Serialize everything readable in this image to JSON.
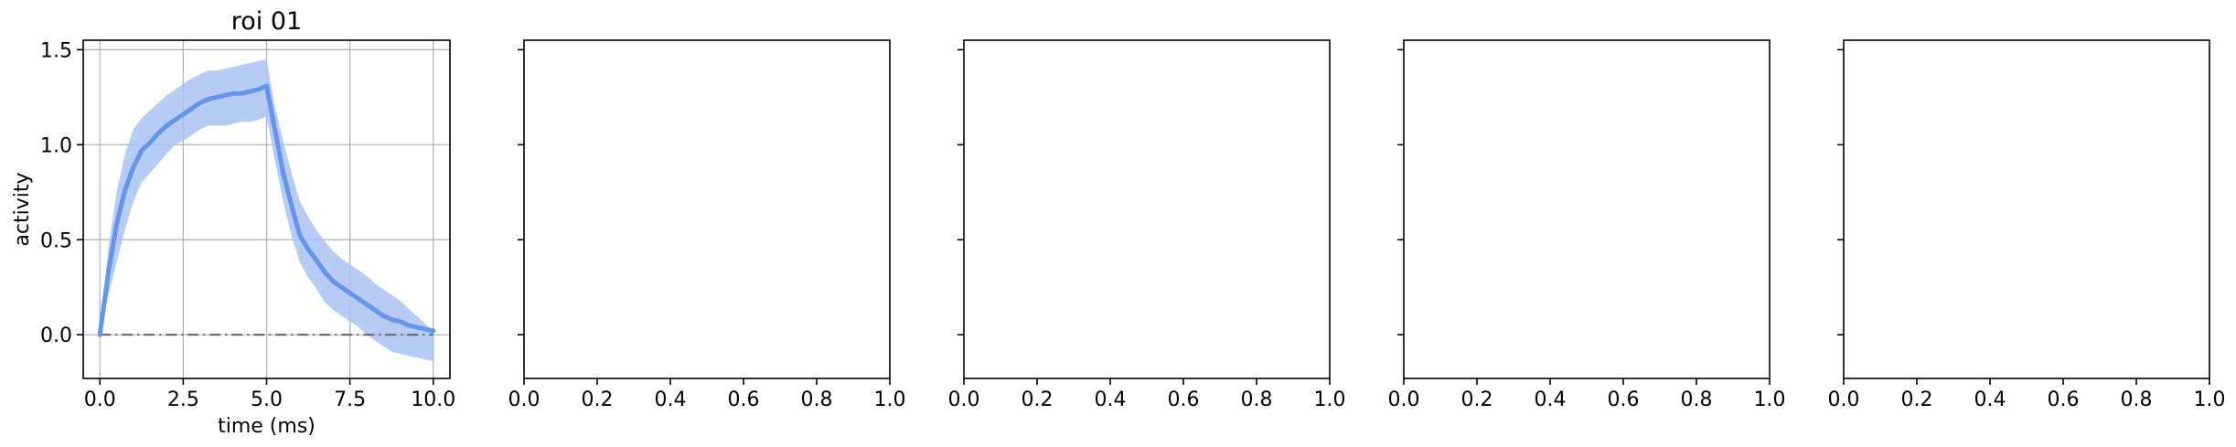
{
  "chart_data": [
    {
      "type": "line",
      "title": "roi 01",
      "xlabel": "time (ms)",
      "ylabel": "activity",
      "xlim": [
        -0.5,
        10.5
      ],
      "ylim": [
        -0.23,
        1.55
      ],
      "xticks": [
        0.0,
        2.5,
        5.0,
        7.5,
        10.0
      ],
      "xtick_labels": [
        "0.0",
        "2.5",
        "5.0",
        "7.5",
        "10.0"
      ],
      "yticks": [
        0.0,
        0.5,
        1.0,
        1.5
      ],
      "ytick_labels": [
        "0.0",
        "0.5",
        "1.0",
        "1.5"
      ],
      "grid": true,
      "colors": {
        "line": "#6495ed",
        "band": "#a9c3f2",
        "baseline": "#666666"
      },
      "x": [
        0,
        0.25,
        0.5,
        0.75,
        1.0,
        1.25,
        1.5,
        1.75,
        2.0,
        2.25,
        2.5,
        2.75,
        3.0,
        3.25,
        3.5,
        3.75,
        4.0,
        4.25,
        4.5,
        4.75,
        5.0,
        5.25,
        5.5,
        5.75,
        6.0,
        6.25,
        6.5,
        6.75,
        7.0,
        7.25,
        7.5,
        7.75,
        8.0,
        8.25,
        8.5,
        8.75,
        9.0,
        9.25,
        9.5,
        9.75,
        10.0
      ],
      "mean": [
        0.0,
        0.32,
        0.58,
        0.76,
        0.88,
        0.97,
        1.01,
        1.06,
        1.1,
        1.13,
        1.16,
        1.19,
        1.22,
        1.24,
        1.25,
        1.26,
        1.27,
        1.27,
        1.28,
        1.29,
        1.31,
        1.08,
        0.85,
        0.68,
        0.52,
        0.45,
        0.39,
        0.33,
        0.28,
        0.25,
        0.22,
        0.19,
        0.16,
        0.13,
        0.1,
        0.08,
        0.07,
        0.05,
        0.04,
        0.03,
        0.02
      ],
      "lower": [
        0.0,
        0.2,
        0.38,
        0.55,
        0.7,
        0.8,
        0.85,
        0.9,
        0.95,
        1.0,
        1.02,
        1.05,
        1.08,
        1.1,
        1.1,
        1.1,
        1.11,
        1.12,
        1.12,
        1.13,
        1.15,
        0.92,
        0.7,
        0.52,
        0.38,
        0.3,
        0.24,
        0.17,
        0.13,
        0.1,
        0.07,
        0.04,
        0.0,
        -0.03,
        -0.06,
        -0.09,
        -0.1,
        -0.11,
        -0.12,
        -0.13,
        -0.14
      ],
      "upper": [
        0.0,
        0.45,
        0.75,
        0.95,
        1.08,
        1.14,
        1.18,
        1.22,
        1.26,
        1.29,
        1.32,
        1.35,
        1.37,
        1.39,
        1.39,
        1.4,
        1.41,
        1.42,
        1.43,
        1.44,
        1.45,
        1.2,
        1.02,
        0.85,
        0.7,
        0.62,
        0.55,
        0.49,
        0.44,
        0.4,
        0.37,
        0.34,
        0.31,
        0.27,
        0.24,
        0.21,
        0.18,
        0.14,
        0.1,
        0.06,
        0.02
      ],
      "baseline": 0.0
    },
    {
      "type": "empty",
      "title": "",
      "xlim": [
        0.0,
        1.0
      ],
      "xticks": [
        0.0,
        0.2,
        0.4,
        0.6,
        0.8,
        1.0
      ],
      "xtick_labels": [
        "0.0",
        "0.2",
        "0.4",
        "0.6",
        "0.8",
        "1.0"
      ]
    },
    {
      "type": "empty",
      "title": "",
      "xlim": [
        0.0,
        1.0
      ],
      "xticks": [
        0.0,
        0.2,
        0.4,
        0.6,
        0.8,
        1.0
      ],
      "xtick_labels": [
        "0.0",
        "0.2",
        "0.4",
        "0.6",
        "0.8",
        "1.0"
      ]
    },
    {
      "type": "empty",
      "title": "",
      "xlim": [
        0.0,
        1.0
      ],
      "xticks": [
        0.0,
        0.2,
        0.4,
        0.6,
        0.8,
        1.0
      ],
      "xtick_labels": [
        "0.0",
        "0.2",
        "0.4",
        "0.6",
        "0.8",
        "1.0"
      ]
    },
    {
      "type": "empty",
      "title": "",
      "xlim": [
        0.0,
        1.0
      ],
      "xticks": [
        0.0,
        0.2,
        0.4,
        0.6,
        0.8,
        1.0
      ],
      "xtick_labels": [
        "0.0",
        "0.2",
        "0.4",
        "0.6",
        "0.8",
        "1.0"
      ]
    }
  ]
}
